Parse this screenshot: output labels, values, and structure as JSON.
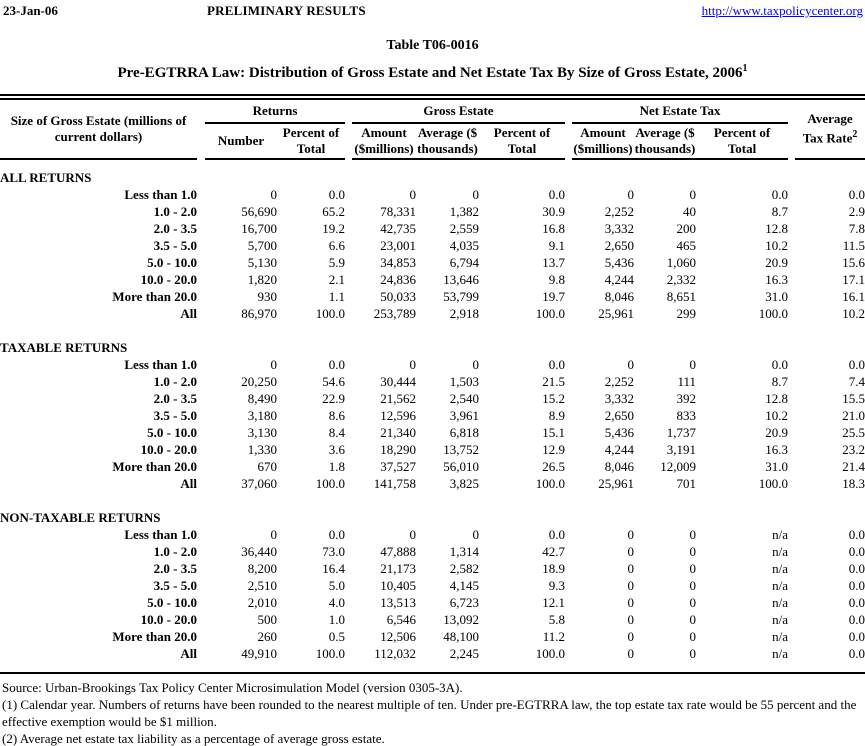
{
  "page": {
    "date": "23-Jan-06",
    "status": "PRELIMINARY RESULTS",
    "link": "http://www.taxpolicycenter.org",
    "table_number": "Table T06-0016",
    "title": "Pre-EGTRRA Law: Distribution of Gross Estate and Net Estate Tax By Size of Gross Estate, 2006",
    "title_footnote_marker": "1"
  },
  "table": {
    "row_header_line1": "Size of Gross Estate (millions of",
    "row_header_line2": "current dollars)",
    "groups": {
      "returns": "Returns",
      "gross_estate": "Gross Estate",
      "net_estate_tax": "Net Estate Tax"
    },
    "avg_tax_rate_line1": "Average",
    "avg_tax_rate_line2": "Tax Rate",
    "avg_tax_rate_footnote_marker": "2",
    "sub_headers": [
      {
        "line1": "Number",
        "line2": ""
      },
      {
        "line1": "Percent of",
        "line2": "Total"
      },
      {
        "line1": "Amount",
        "line2": "($millions)"
      },
      {
        "line1": "Average ($",
        "line2": "thousands)"
      },
      {
        "line1": "Percent of",
        "line2": "Total"
      },
      {
        "line1": "Amount",
        "line2": "($millions)"
      },
      {
        "line1": "Average ($",
        "line2": "thousands)"
      },
      {
        "line1": "Percent of",
        "line2": "Total"
      }
    ],
    "sections": [
      {
        "name": "ALL RETURNS",
        "rows": [
          {
            "label": "Less than 1.0",
            "values": [
              "0",
              "0.0",
              "0",
              "0",
              "0.0",
              "0",
              "0",
              "0.0",
              "0.0"
            ]
          },
          {
            "label": "1.0 - 2.0",
            "values": [
              "56,690",
              "65.2",
              "78,331",
              "1,382",
              "30.9",
              "2,252",
              "40",
              "8.7",
              "2.9"
            ]
          },
          {
            "label": "2.0 - 3.5",
            "values": [
              "16,700",
              "19.2",
              "42,735",
              "2,559",
              "16.8",
              "3,332",
              "200",
              "12.8",
              "7.8"
            ]
          },
          {
            "label": "3.5 - 5.0",
            "values": [
              "5,700",
              "6.6",
              "23,001",
              "4,035",
              "9.1",
              "2,650",
              "465",
              "10.2",
              "11.5"
            ]
          },
          {
            "label": "5.0 - 10.0",
            "values": [
              "5,130",
              "5.9",
              "34,853",
              "6,794",
              "13.7",
              "5,436",
              "1,060",
              "20.9",
              "15.6"
            ]
          },
          {
            "label": "10.0 - 20.0",
            "values": [
              "1,820",
              "2.1",
              "24,836",
              "13,646",
              "9.8",
              "4,244",
              "2,332",
              "16.3",
              "17.1"
            ]
          },
          {
            "label": "More than 20.0",
            "values": [
              "930",
              "1.1",
              "50,033",
              "53,799",
              "19.7",
              "8,046",
              "8,651",
              "31.0",
              "16.1"
            ]
          },
          {
            "label": "All",
            "values": [
              "86,970",
              "100.0",
              "253,789",
              "2,918",
              "100.0",
              "25,961",
              "299",
              "100.0",
              "10.2"
            ]
          }
        ]
      },
      {
        "name": "TAXABLE RETURNS",
        "rows": [
          {
            "label": "Less than 1.0",
            "values": [
              "0",
              "0.0",
              "0",
              "0",
              "0.0",
              "0",
              "0",
              "0.0",
              "0.0"
            ]
          },
          {
            "label": "1.0 - 2.0",
            "values": [
              "20,250",
              "54.6",
              "30,444",
              "1,503",
              "21.5",
              "2,252",
              "111",
              "8.7",
              "7.4"
            ]
          },
          {
            "label": "2.0 - 3.5",
            "values": [
              "8,490",
              "22.9",
              "21,562",
              "2,540",
              "15.2",
              "3,332",
              "392",
              "12.8",
              "15.5"
            ]
          },
          {
            "label": "3.5 - 5.0",
            "values": [
              "3,180",
              "8.6",
              "12,596",
              "3,961",
              "8.9",
              "2,650",
              "833",
              "10.2",
              "21.0"
            ]
          },
          {
            "label": "5.0 - 10.0",
            "values": [
              "3,130",
              "8.4",
              "21,340",
              "6,818",
              "15.1",
              "5,436",
              "1,737",
              "20.9",
              "25.5"
            ]
          },
          {
            "label": "10.0 - 20.0",
            "values": [
              "1,330",
              "3.6",
              "18,290",
              "13,752",
              "12.9",
              "4,244",
              "3,191",
              "16.3",
              "23.2"
            ]
          },
          {
            "label": "More than 20.0",
            "values": [
              "670",
              "1.8",
              "37,527",
              "56,010",
              "26.5",
              "8,046",
              "12,009",
              "31.0",
              "21.4"
            ]
          },
          {
            "label": "All",
            "values": [
              "37,060",
              "100.0",
              "141,758",
              "3,825",
              "100.0",
              "25,961",
              "701",
              "100.0",
              "18.3"
            ]
          }
        ]
      },
      {
        "name": "NON-TAXABLE RETURNS",
        "rows": [
          {
            "label": "Less than 1.0",
            "values": [
              "0",
              "0.0",
              "0",
              "0",
              "0.0",
              "0",
              "0",
              "n/a",
              "0.0"
            ]
          },
          {
            "label": "1.0 - 2.0",
            "values": [
              "36,440",
              "73.0",
              "47,888",
              "1,314",
              "42.7",
              "0",
              "0",
              "n/a",
              "0.0"
            ]
          },
          {
            "label": "2.0 - 3.5",
            "values": [
              "8,200",
              "16.4",
              "21,173",
              "2,582",
              "18.9",
              "0",
              "0",
              "n/a",
              "0.0"
            ]
          },
          {
            "label": "3.5 - 5.0",
            "values": [
              "2,510",
              "5.0",
              "10,405",
              "4,145",
              "9.3",
              "0",
              "0",
              "n/a",
              "0.0"
            ]
          },
          {
            "label": "5.0 - 10.0",
            "values": [
              "2,010",
              "4.0",
              "13,513",
              "6,723",
              "12.1",
              "0",
              "0",
              "n/a",
              "0.0"
            ]
          },
          {
            "label": "10.0 - 20.0",
            "values": [
              "500",
              "1.0",
              "6,546",
              "13,092",
              "5.8",
              "0",
              "0",
              "n/a",
              "0.0"
            ]
          },
          {
            "label": "More than 20.0",
            "values": [
              "260",
              "0.5",
              "12,506",
              "48,100",
              "11.2",
              "0",
              "0",
              "n/a",
              "0.0"
            ]
          },
          {
            "label": "All",
            "values": [
              "49,910",
              "100.0",
              "112,032",
              "2,245",
              "100.0",
              "0",
              "0",
              "n/a",
              "0.0"
            ]
          }
        ]
      }
    ]
  },
  "footnotes": {
    "source": "Source: Urban-Brookings Tax Policy Center Microsimulation Model (version 0305-3A).",
    "note1": "(1) Calendar year. Numbers of returns have been rounded to the nearest multiple of ten. Under pre-EGTRRA law, the top estate tax rate would be 55 percent and the effective exemption would be $1 million.",
    "note2": "(2) Average net estate tax liability as a percentage of average gross estate."
  }
}
